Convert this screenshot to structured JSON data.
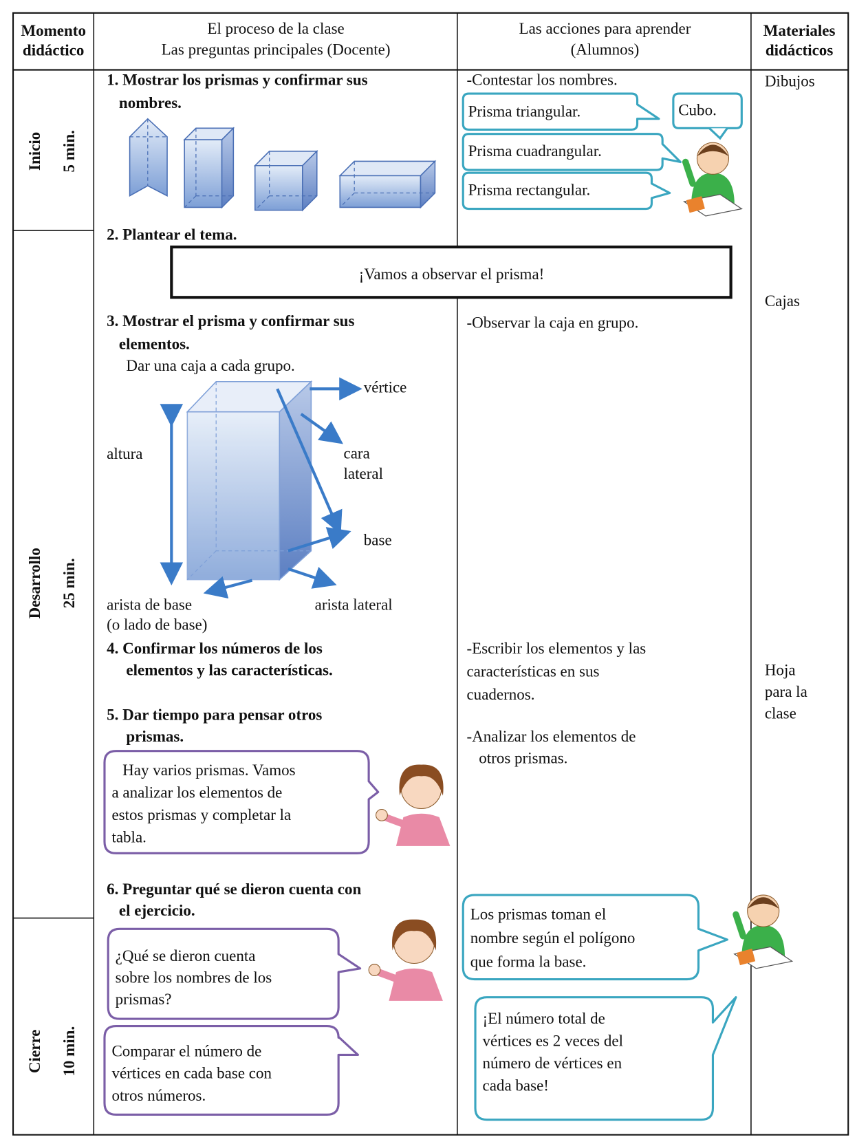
{
  "header": {
    "moment": [
      "Momento",
      "didáctico"
    ],
    "process": [
      "El proceso de la clase",
      "Las preguntas principales (Docente)"
    ],
    "actions": [
      "Las acciones para aprender",
      "(Alumnos)"
    ],
    "materials": [
      "Materiales",
      "didácticos"
    ]
  },
  "stages": [
    {
      "name": "Inicio",
      "time": "5 min."
    },
    {
      "name": "Desarrollo",
      "time": "25 min."
    },
    {
      "name": "Cierre",
      "time": "10 min."
    }
  ],
  "process": {
    "step1": [
      "1. Mostrar los prismas y confirmar sus",
      "nombres."
    ],
    "step2": "2. Plantear el tema.",
    "theme": "¡Vamos a observar el prisma!",
    "step3": [
      "3. Mostrar el prisma y confirmar sus",
      "elementos."
    ],
    "step3_note": "Dar una caja a cada grupo.",
    "diagram_labels": {
      "vertex": "vértice",
      "lateral_face": [
        "cara",
        "lateral"
      ],
      "height": "altura",
      "base": "base",
      "base_edge": [
        "arista de base",
        "(o lado de base)"
      ],
      "lateral_edge": "arista lateral"
    },
    "step4": [
      "4. Confirmar los números de los",
      "elementos y las características."
    ],
    "step5": [
      "5. Dar tiempo para pensar otros",
      "prismas."
    ],
    "teacher_bubble_1": [
      "Hay varios prismas. Vamos",
      "a analizar los elementos de",
      "estos prismas y completar la",
      "tabla."
    ],
    "step6": [
      "6. Preguntar qué se dieron cuenta con",
      "el ejercicio."
    ],
    "teacher_bubble_2": [
      "¿Qué se dieron cuenta",
      "sobre los nombres de los",
      "prismas?"
    ],
    "teacher_bubble_3": [
      "Comparar el número de",
      "vértices en cada base con",
      "otros números."
    ]
  },
  "actions": {
    "a1": "-Contestar los nombres.",
    "answers": [
      "Prisma triangular.",
      "Cubo.",
      "Prisma cuadrangular.",
      "Prisma rectangular."
    ],
    "a3": "-Observar la caja en grupo.",
    "a4": [
      "-Escribir los elementos y las",
      "características en sus",
      "cuadernos."
    ],
    "a5": [
      "-Analizar los elementos de",
      "otros prismas."
    ],
    "student_bubble_1": [
      "Los prismas toman el",
      "nombre según el polígono",
      "que forma la base."
    ],
    "student_bubble_2": [
      "¡El número total de",
      "vértices es 2 veces del",
      "número de vértices en",
      "cada base!"
    ]
  },
  "materials": {
    "drawings": "Dibujos",
    "boxes": "Cajas",
    "sheet": [
      "Hoja",
      "para la",
      "clase"
    ]
  }
}
